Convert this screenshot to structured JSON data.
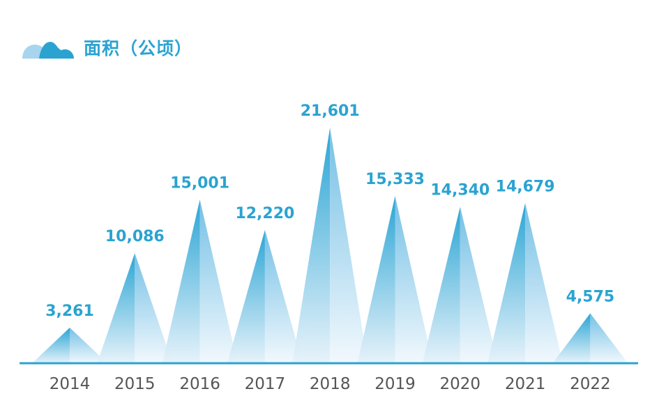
{
  "header": {
    "title": "面积（公顷）",
    "icon": "hills-icon"
  },
  "colors": {
    "accent": "#2aa3d1",
    "axis": "#2aa3d1",
    "tick_text": "#555555",
    "peak_dark": "#1fa0d2",
    "peak_light": "#e6f2fa",
    "icon_light": "#a7d4ee"
  },
  "chart_data": {
    "type": "bar",
    "title": "面积（公顷）",
    "categories": [
      "2014",
      "2015",
      "2016",
      "2017",
      "2018",
      "2019",
      "2020",
      "2021",
      "2022"
    ],
    "values": [
      3261,
      10086,
      15001,
      12220,
      21601,
      15333,
      14340,
      14679,
      4575
    ],
    "value_labels": [
      "3,261",
      "10,086",
      "15,001",
      "12,220",
      "21,601",
      "15,333",
      "14,340",
      "14,679",
      "4,575"
    ],
    "xlabel": "",
    "ylabel": "",
    "ylim": [
      0,
      21601
    ],
    "grid": false,
    "legend": "none"
  }
}
